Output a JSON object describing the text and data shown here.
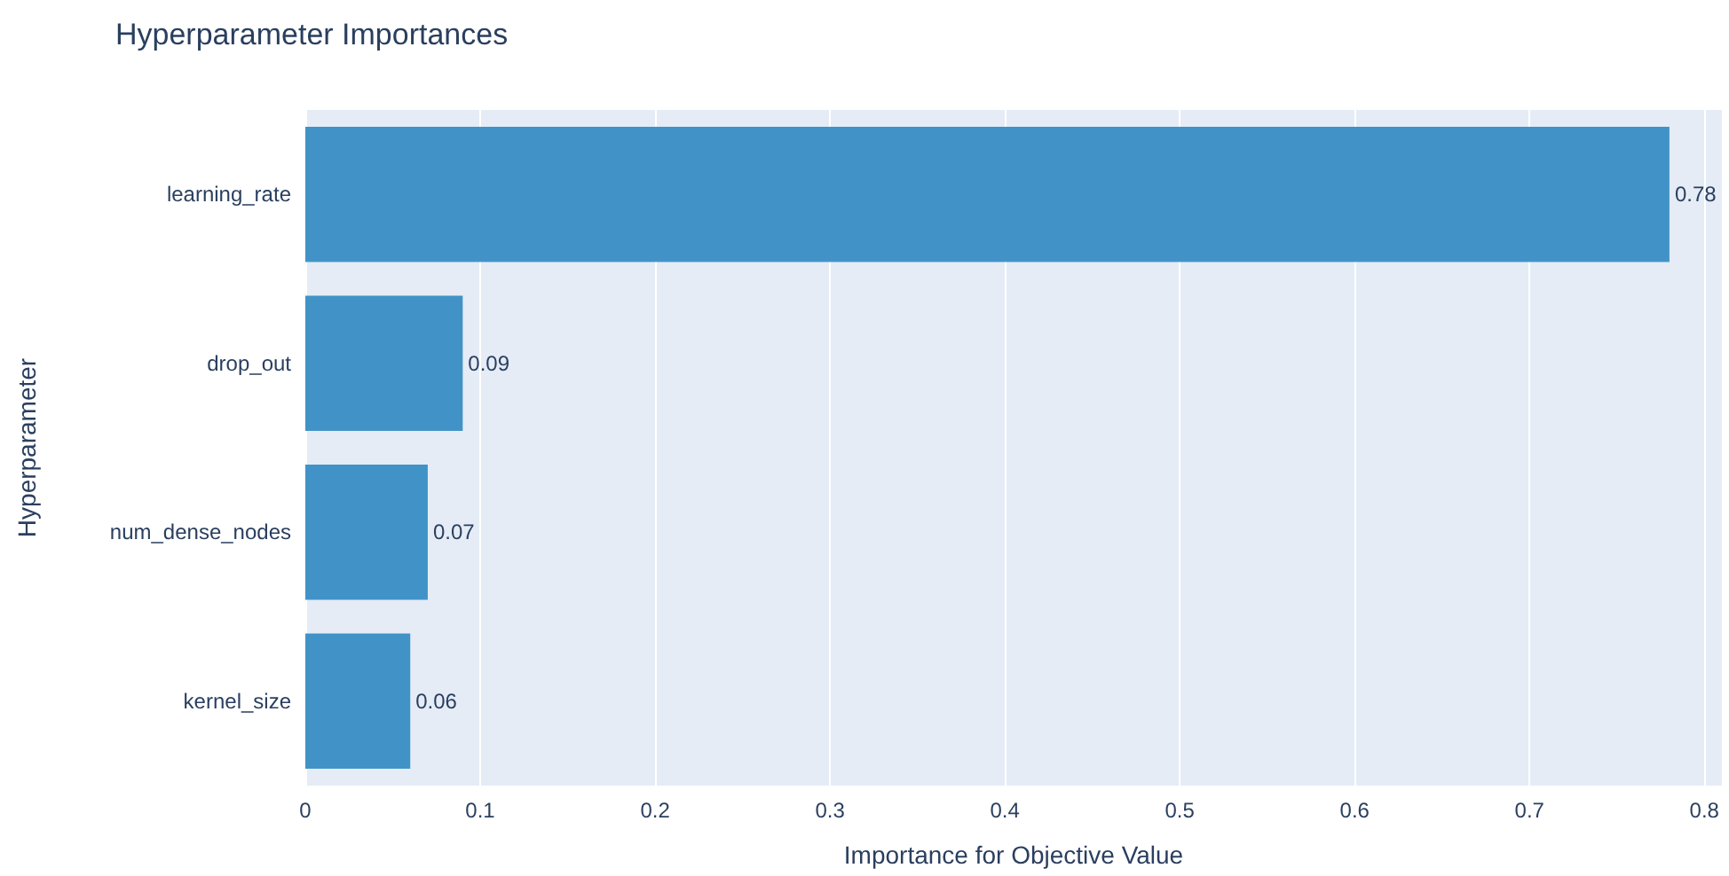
{
  "chart_data": {
    "type": "bar",
    "orientation": "horizontal",
    "title": "Hyperparameter Importances",
    "xlabel": "Importance for Objective Value",
    "ylabel": "Hyperparameter",
    "categories": [
      "learning_rate",
      "drop_out",
      "num_dense_nodes",
      "kernel_size"
    ],
    "values": [
      0.78,
      0.09,
      0.07,
      0.06
    ],
    "color": "#4193c7",
    "xlim": [
      0,
      0.81
    ],
    "xticks": [
      0,
      0.1,
      0.2,
      0.3,
      0.4,
      0.5,
      0.6,
      0.7,
      0.8
    ],
    "grid": "x",
    "data_labels": true
  }
}
